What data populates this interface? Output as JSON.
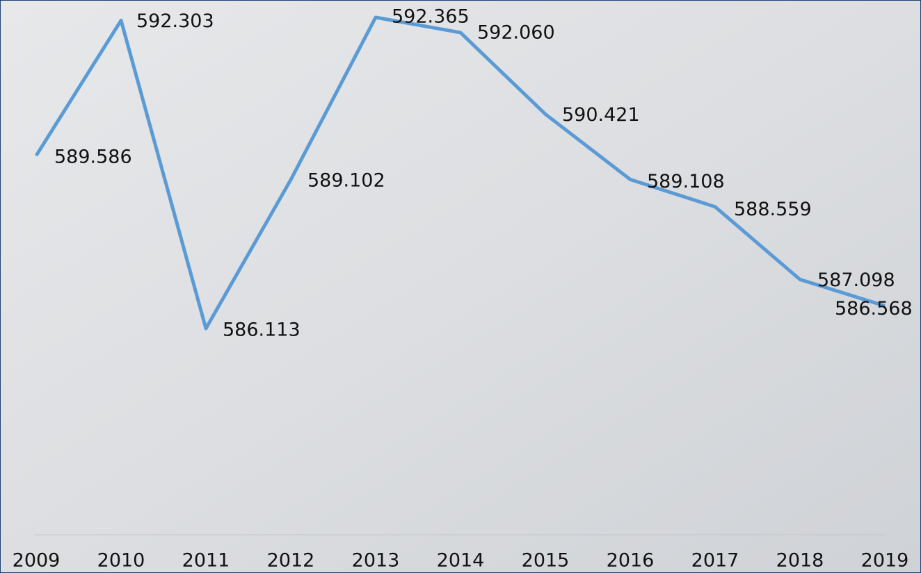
{
  "chart_data": {
    "type": "line",
    "categories": [
      "2009",
      "2010",
      "2011",
      "2012",
      "2013",
      "2014",
      "2015",
      "2016",
      "2017",
      "2018",
      "2019"
    ],
    "series": [
      {
        "color": "#5b9bd5",
        "values": [
          589586,
          592303,
          586113,
          589102,
          592365,
          592060,
          590421,
          589108,
          588559,
          587098,
          586568
        ],
        "value_labels": [
          "589.586",
          "592.303",
          "586.113",
          "589.102",
          "592.365",
          "592.060",
          "590.421",
          "589.108",
          "588.559",
          "587.098",
          "586.568"
        ]
      }
    ]
  }
}
